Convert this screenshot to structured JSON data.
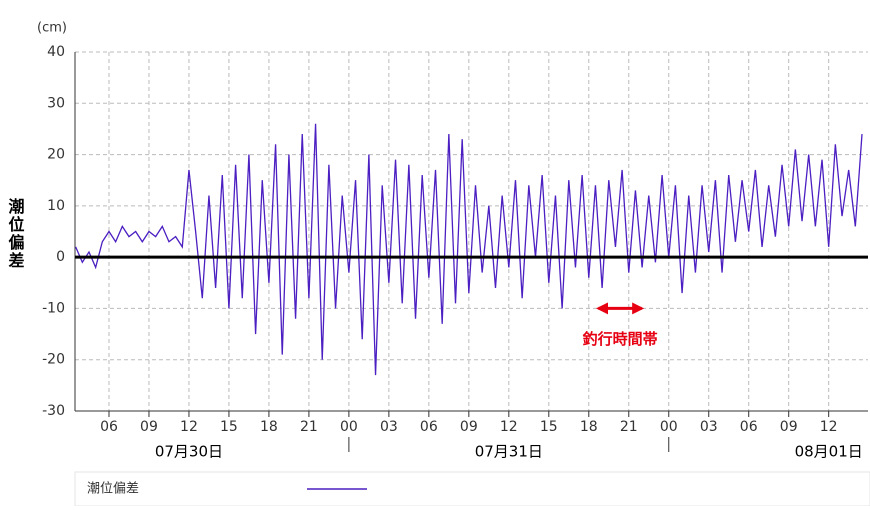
{
  "chart_data": {
    "type": "line",
    "y_label": "潮位偏差",
    "y_unit": "(cm)",
    "x": [
      3.5,
      4,
      4.5,
      5,
      5.5,
      6,
      6.5,
      7,
      7.5,
      8,
      8.5,
      9,
      9.5,
      10,
      10.5,
      11,
      11.5,
      12,
      12.5,
      13,
      13.5,
      14,
      14.5,
      15,
      15.5,
      16,
      16.5,
      17,
      17.5,
      18,
      18.5,
      19,
      19.5,
      20,
      20.5,
      21,
      21.5,
      22,
      22.5,
      23,
      23.5,
      24,
      24.5,
      25,
      25.5,
      26,
      26.5,
      27,
      27.5,
      28,
      28.5,
      29,
      29.5,
      30,
      30.5,
      31,
      31.5,
      32,
      32.5,
      33,
      33.5,
      34,
      34.5,
      35,
      35.5,
      36,
      36.5,
      37,
      37.5,
      38,
      38.5,
      39,
      39.5,
      40,
      40.5,
      41,
      41.5,
      42,
      42.5,
      43,
      43.5,
      44,
      44.5,
      45,
      45.5,
      46,
      46.5,
      47,
      47.5,
      48,
      48.5,
      49,
      49.5,
      50,
      50.5,
      51,
      51.5,
      52,
      52.5,
      53,
      53.5,
      54,
      54.5,
      55,
      55.5,
      56,
      56.5,
      57,
      57.5,
      58,
      58.5,
      59,
      59.5,
      60,
      60.5,
      61,
      61.5,
      62,
      62.5
    ],
    "series": [
      {
        "name": "潮位偏差",
        "color": "#4b1fc1",
        "values": [
          2,
          -1,
          1,
          -2,
          3,
          5,
          3,
          6,
          4,
          5,
          3,
          5,
          4,
          6,
          3,
          4,
          2,
          17,
          5,
          -8,
          12,
          -6,
          16,
          -10,
          18,
          -8,
          20,
          -15,
          15,
          -5,
          22,
          -19,
          20,
          -12,
          24,
          -8,
          26,
          -20,
          18,
          -10,
          12,
          -3,
          15,
          -16,
          20,
          -23,
          14,
          -5,
          19,
          -9,
          18,
          -12,
          16,
          -4,
          17,
          -13,
          24,
          -9,
          23,
          -7,
          14,
          -3,
          10,
          -6,
          12,
          -2,
          15,
          -8,
          14,
          0,
          16,
          -5,
          12,
          -10,
          15,
          -2,
          16,
          -4,
          14,
          -6,
          15,
          2,
          17,
          -3,
          13,
          -2,
          12,
          -1,
          16,
          0,
          14,
          -7,
          12,
          -3,
          14,
          1,
          15,
          -3,
          16,
          3,
          15,
          5,
          17,
          2,
          14,
          4,
          18,
          6,
          21,
          7,
          20,
          6,
          19,
          2,
          22,
          8,
          17,
          6,
          24
        ]
      }
    ],
    "xlim": [
      3.45,
      62.95
    ],
    "xticks": [
      {
        "value": 6,
        "label": "06"
      },
      {
        "value": 9,
        "label": "09"
      },
      {
        "value": 12,
        "label": "12"
      },
      {
        "value": 15,
        "label": "15"
      },
      {
        "value": 18,
        "label": "18"
      },
      {
        "value": 21,
        "label": "21"
      },
      {
        "value": 24,
        "label": "00"
      },
      {
        "value": 27,
        "label": "03"
      },
      {
        "value": 30,
        "label": "06"
      },
      {
        "value": 33,
        "label": "09"
      },
      {
        "value": 36,
        "label": "12"
      },
      {
        "value": 39,
        "label": "15"
      },
      {
        "value": 42,
        "label": "18"
      },
      {
        "value": 45,
        "label": "21"
      },
      {
        "value": 48,
        "label": "00"
      },
      {
        "value": 51,
        "label": "03"
      },
      {
        "value": 54,
        "label": "06"
      },
      {
        "value": 57,
        "label": "09"
      },
      {
        "value": 60,
        "label": "12"
      }
    ],
    "date_labels": [
      {
        "value": 12,
        "label": "07月30日"
      },
      {
        "value": 36,
        "label": "07月31日"
      },
      {
        "value": 60,
        "label": "08月01日"
      }
    ],
    "day_ticks": [
      24,
      48
    ],
    "ylim": [
      -30,
      40
    ],
    "yticks": [
      -30,
      -20,
      -10,
      0,
      10,
      20,
      30,
      40
    ],
    "grid": true,
    "annotation": {
      "text": "釣行時間帯",
      "x_range": [
        42.5,
        46.2
      ],
      "y": -10,
      "color": "#e60012"
    }
  }
}
